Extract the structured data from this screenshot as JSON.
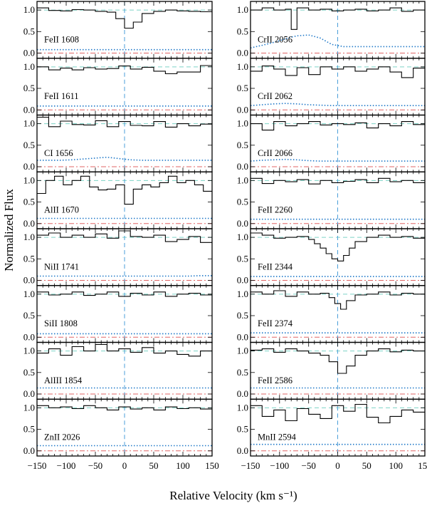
{
  "figure": {
    "ylabel": "Normalized Flux",
    "xlabel": "Relative Velocity  (km s⁻¹)"
  },
  "chart_data": {
    "type": "line",
    "drawstyle": "steps",
    "xlabel": "Relative Velocity  (km s⁻¹)",
    "ylabel": "Normalized Flux",
    "xlim": [
      -150,
      150
    ],
    "ylim": [
      -0.12,
      1.2
    ],
    "xticks": [
      -150,
      -100,
      -50,
      0,
      50,
      100,
      150
    ],
    "yticks": [
      0.0,
      0.5,
      1.0
    ],
    "reference_lines": {
      "continuum": 1.0,
      "zero": 0.0,
      "velocity_zero": 0,
      "continuum_color": "#7dd3c6",
      "zero_color": "#e06666",
      "velocity_color": "#4a9ed8",
      "error_color": "#1f78c8"
    },
    "grid": false,
    "panels": [
      {
        "column": "left",
        "label": "FeII 1608",
        "x": [
          -150,
          -130,
          -110,
          -90,
          -70,
          -50,
          -30,
          -15,
          0,
          15,
          30,
          50,
          70,
          90,
          110,
          130
        ],
        "y": [
          1.05,
          0.99,
          0.98,
          1.01,
          1.0,
          0.97,
          0.95,
          0.8,
          0.58,
          0.72,
          0.92,
          0.97,
          1.0,
          0.98,
          0.97,
          0.96
        ],
        "error": [
          0.08,
          0.08,
          0.08,
          0.08,
          0.08,
          0.08,
          0.08,
          0.08,
          0.08,
          0.08,
          0.08,
          0.08,
          0.08,
          0.08,
          0.08,
          0.08
        ]
      },
      {
        "column": "left",
        "label": "FeII 1611",
        "x": [
          -150,
          -130,
          -110,
          -90,
          -70,
          -50,
          -30,
          -10,
          10,
          30,
          50,
          70,
          90,
          110,
          130
        ],
        "y": [
          1.0,
          0.93,
          0.97,
          0.93,
          0.98,
          0.95,
          0.96,
          1.02,
          0.95,
          0.99,
          0.9,
          0.84,
          0.88,
          0.88,
          1.03
        ],
        "error": [
          0.09,
          0.09,
          0.09,
          0.09,
          0.09,
          0.09,
          0.09,
          0.09,
          0.09,
          0.09,
          0.09,
          0.09,
          0.09,
          0.09,
          0.09
        ]
      },
      {
        "column": "left",
        "label": "CI 1656",
        "x": [
          -150,
          -130,
          -110,
          -90,
          -70,
          -50,
          -30,
          -10,
          10,
          30,
          50,
          70,
          90,
          110,
          130
        ],
        "y": [
          1.15,
          0.93,
          1.06,
          0.98,
          0.97,
          1.07,
          0.93,
          1.05,
          0.96,
          0.95,
          1.05,
          0.92,
          1.0,
          0.95,
          0.99
        ],
        "error": [
          0.15,
          0.15,
          0.15,
          0.16,
          0.18,
          0.2,
          0.22,
          0.19,
          0.16,
          0.15,
          0.15,
          0.15,
          0.15,
          0.15,
          0.15
        ]
      },
      {
        "column": "left",
        "label": "AlII 1670",
        "x": [
          -150,
          -135,
          -120,
          -105,
          -90,
          -75,
          -60,
          -45,
          -30,
          -15,
          0,
          15,
          30,
          45,
          60,
          75,
          90,
          105,
          120,
          135
        ],
        "y": [
          0.7,
          1.0,
          1.1,
          0.9,
          1.0,
          1.1,
          0.85,
          0.78,
          0.8,
          0.9,
          0.45,
          0.8,
          0.9,
          0.85,
          0.95,
          1.1,
          0.95,
          1.0,
          0.9,
          0.75
        ],
        "error": [
          0.12,
          0.12,
          0.12,
          0.12,
          0.12,
          0.12,
          0.12,
          0.12,
          0.12,
          0.12,
          0.12,
          0.12,
          0.12,
          0.12,
          0.12,
          0.12,
          0.12,
          0.12,
          0.12,
          0.12
        ]
      },
      {
        "column": "left",
        "label": "NiII 1741",
        "x": [
          -150,
          -130,
          -110,
          -90,
          -70,
          -50,
          -30,
          -10,
          10,
          30,
          50,
          70,
          90,
          110,
          130
        ],
        "y": [
          1.05,
          1.1,
          1.0,
          1.05,
          1.0,
          1.08,
          0.98,
          1.15,
          1.02,
          1.0,
          1.05,
          0.9,
          0.95,
          1.02,
          0.88
        ],
        "error": [
          0.1,
          0.1,
          0.1,
          0.1,
          0.1,
          0.1,
          0.1,
          0.1,
          0.1,
          0.1,
          0.1,
          0.1,
          0.1,
          0.1,
          0.11
        ]
      },
      {
        "column": "left",
        "label": "SiII 1808",
        "x": [
          -150,
          -130,
          -110,
          -90,
          -70,
          -50,
          -30,
          -10,
          10,
          30,
          50,
          70,
          90,
          110,
          130
        ],
        "y": [
          1.05,
          0.98,
          1.0,
          1.05,
          0.97,
          1.0,
          1.05,
          0.95,
          1.02,
          0.98,
          1.05,
          0.95,
          1.0,
          1.02,
          0.98
        ],
        "error": [
          0.08,
          0.08,
          0.08,
          0.08,
          0.08,
          0.08,
          0.08,
          0.08,
          0.08,
          0.08,
          0.08,
          0.08,
          0.08,
          0.08,
          0.08
        ]
      },
      {
        "column": "left",
        "label": "AlIII 1854",
        "x": [
          -150,
          -130,
          -110,
          -90,
          -70,
          -50,
          -30,
          -10,
          10,
          30,
          50,
          70,
          90,
          110,
          130
        ],
        "y": [
          0.95,
          1.05,
          0.9,
          1.1,
          1.0,
          1.15,
          1.0,
          1.05,
          0.97,
          1.08,
          0.95,
          1.0,
          0.92,
          0.88,
          1.0
        ],
        "error": [
          0.14,
          0.14,
          0.14,
          0.14,
          0.14,
          0.14,
          0.14,
          0.14,
          0.14,
          0.14,
          0.14,
          0.14,
          0.14,
          0.14,
          0.14
        ]
      },
      {
        "column": "left",
        "label": "ZnII 2026",
        "x": [
          -150,
          -130,
          -110,
          -90,
          -70,
          -50,
          -30,
          -10,
          10,
          30,
          50,
          70,
          90,
          110,
          130
        ],
        "y": [
          1.05,
          1.0,
          1.02,
          0.98,
          1.05,
          1.0,
          0.95,
          1.02,
          0.97,
          1.0,
          0.95,
          1.02,
          0.98,
          1.0,
          0.97
        ],
        "error": [
          0.12,
          0.12,
          0.12,
          0.12,
          0.12,
          0.12,
          0.12,
          0.12,
          0.12,
          0.12,
          0.12,
          0.12,
          0.12,
          0.12,
          0.12
        ]
      },
      {
        "column": "right",
        "label": "CrII 2056",
        "x": [
          -150,
          -130,
          -110,
          -90,
          -80,
          -70,
          -50,
          -30,
          -10,
          10,
          30,
          50,
          70,
          90,
          110,
          130
        ],
        "y": [
          1.0,
          1.05,
          1.0,
          1.02,
          0.55,
          1.05,
          1.0,
          1.02,
          0.98,
          1.0,
          1.02,
          0.98,
          1.0,
          1.05,
          0.97,
          1.0
        ],
        "error": [
          0.12,
          0.18,
          0.25,
          0.33,
          0.37,
          0.4,
          0.42,
          0.35,
          0.2,
          0.15,
          0.15,
          0.15,
          0.15,
          0.15,
          0.15,
          0.15
        ]
      },
      {
        "column": "right",
        "label": "CrII 2062",
        "x": [
          -150,
          -130,
          -110,
          -90,
          -70,
          -50,
          -30,
          -10,
          10,
          30,
          50,
          70,
          90,
          110,
          130
        ],
        "y": [
          0.9,
          1.02,
          0.95,
          0.8,
          0.98,
          0.82,
          1.0,
          0.95,
          1.0,
          0.9,
          0.95,
          1.0,
          0.88,
          0.75,
          0.97
        ],
        "error": [
          0.1,
          0.12,
          0.14,
          0.15,
          0.14,
          0.12,
          0.11,
          0.1,
          0.1,
          0.1,
          0.1,
          0.1,
          0.1,
          0.1,
          0.1
        ]
      },
      {
        "column": "right",
        "label": "CrII 2066",
        "x": [
          -150,
          -130,
          -110,
          -90,
          -70,
          -50,
          -30,
          -10,
          10,
          30,
          50,
          70,
          90,
          110,
          130
        ],
        "y": [
          1.0,
          0.85,
          1.05,
          0.95,
          1.0,
          1.05,
          0.97,
          1.0,
          0.98,
          1.02,
          0.9,
          1.0,
          0.95,
          1.05,
          0.98
        ],
        "error": [
          0.13,
          0.15,
          0.16,
          0.17,
          0.16,
          0.14,
          0.13,
          0.13,
          0.13,
          0.13,
          0.13,
          0.13,
          0.13,
          0.13,
          0.13
        ]
      },
      {
        "column": "right",
        "label": "FeII 2260",
        "x": [
          -150,
          -130,
          -110,
          -90,
          -70,
          -50,
          -30,
          -10,
          10,
          30,
          50,
          70,
          90,
          110,
          130
        ],
        "y": [
          1.05,
          0.93,
          1.0,
          0.97,
          1.02,
          0.92,
          1.0,
          0.95,
          0.98,
          1.02,
          0.95,
          1.05,
          0.97,
          1.0,
          0.95
        ],
        "error": [
          0.1,
          0.1,
          0.1,
          0.1,
          0.1,
          0.1,
          0.1,
          0.1,
          0.1,
          0.1,
          0.1,
          0.1,
          0.1,
          0.1,
          0.1
        ]
      },
      {
        "column": "right",
        "label": "FeII 2344",
        "x": [
          -150,
          -130,
          -110,
          -90,
          -70,
          -50,
          -40,
          -30,
          -20,
          -10,
          0,
          10,
          20,
          30,
          50,
          70,
          90,
          110,
          130
        ],
        "y": [
          1.1,
          1.05,
          0.98,
          1.0,
          1.02,
          0.95,
          0.85,
          0.75,
          0.62,
          0.5,
          0.45,
          0.58,
          0.75,
          0.9,
          1.0,
          1.05,
          1.0,
          1.02,
          0.98
        ],
        "error": [
          0.09,
          0.09,
          0.09,
          0.09,
          0.09,
          0.09,
          0.09,
          0.09,
          0.09,
          0.09,
          0.09,
          0.09,
          0.09,
          0.09,
          0.09,
          0.09,
          0.09,
          0.09,
          0.09
        ]
      },
      {
        "column": "right",
        "label": "FeII 2374",
        "x": [
          -150,
          -130,
          -110,
          -90,
          -70,
          -50,
          -30,
          -15,
          -5,
          5,
          15,
          30,
          50,
          70,
          90,
          110,
          130
        ],
        "y": [
          1.05,
          1.0,
          1.08,
          0.95,
          1.05,
          1.0,
          1.02,
          0.92,
          0.78,
          0.65,
          0.85,
          0.98,
          1.0,
          1.05,
          0.98,
          1.02,
          1.0
        ],
        "error": [
          0.1,
          0.1,
          0.1,
          0.1,
          0.1,
          0.1,
          0.1,
          0.1,
          0.1,
          0.1,
          0.1,
          0.1,
          0.1,
          0.1,
          0.1,
          0.1,
          0.1
        ]
      },
      {
        "column": "right",
        "label": "FeII 2586",
        "x": [
          -150,
          -130,
          -110,
          -90,
          -70,
          -50,
          -30,
          -15,
          0,
          15,
          30,
          50,
          70,
          90,
          110,
          130
        ],
        "y": [
          1.02,
          1.05,
          0.97,
          1.05,
          1.0,
          0.95,
          0.9,
          0.75,
          0.48,
          0.65,
          0.9,
          1.0,
          1.05,
          0.98,
          1.02,
          1.0
        ],
        "error": [
          0.14,
          0.14,
          0.14,
          0.14,
          0.14,
          0.14,
          0.14,
          0.14,
          0.14,
          0.14,
          0.14,
          0.14,
          0.14,
          0.14,
          0.14,
          0.14
        ]
      },
      {
        "column": "right",
        "label": "MnII 2594",
        "x": [
          -150,
          -130,
          -110,
          -90,
          -70,
          -50,
          -30,
          -10,
          10,
          30,
          50,
          70,
          90,
          110,
          130
        ],
        "y": [
          1.05,
          0.8,
          0.95,
          0.7,
          0.98,
          0.85,
          0.75,
          1.05,
          0.92,
          1.08,
          0.78,
          0.65,
          0.8,
          0.95,
          0.9
        ],
        "error": [
          0.15,
          0.15,
          0.15,
          0.15,
          0.15,
          0.15,
          0.15,
          0.15,
          0.15,
          0.15,
          0.15,
          0.15,
          0.15,
          0.15,
          0.15
        ]
      }
    ]
  }
}
